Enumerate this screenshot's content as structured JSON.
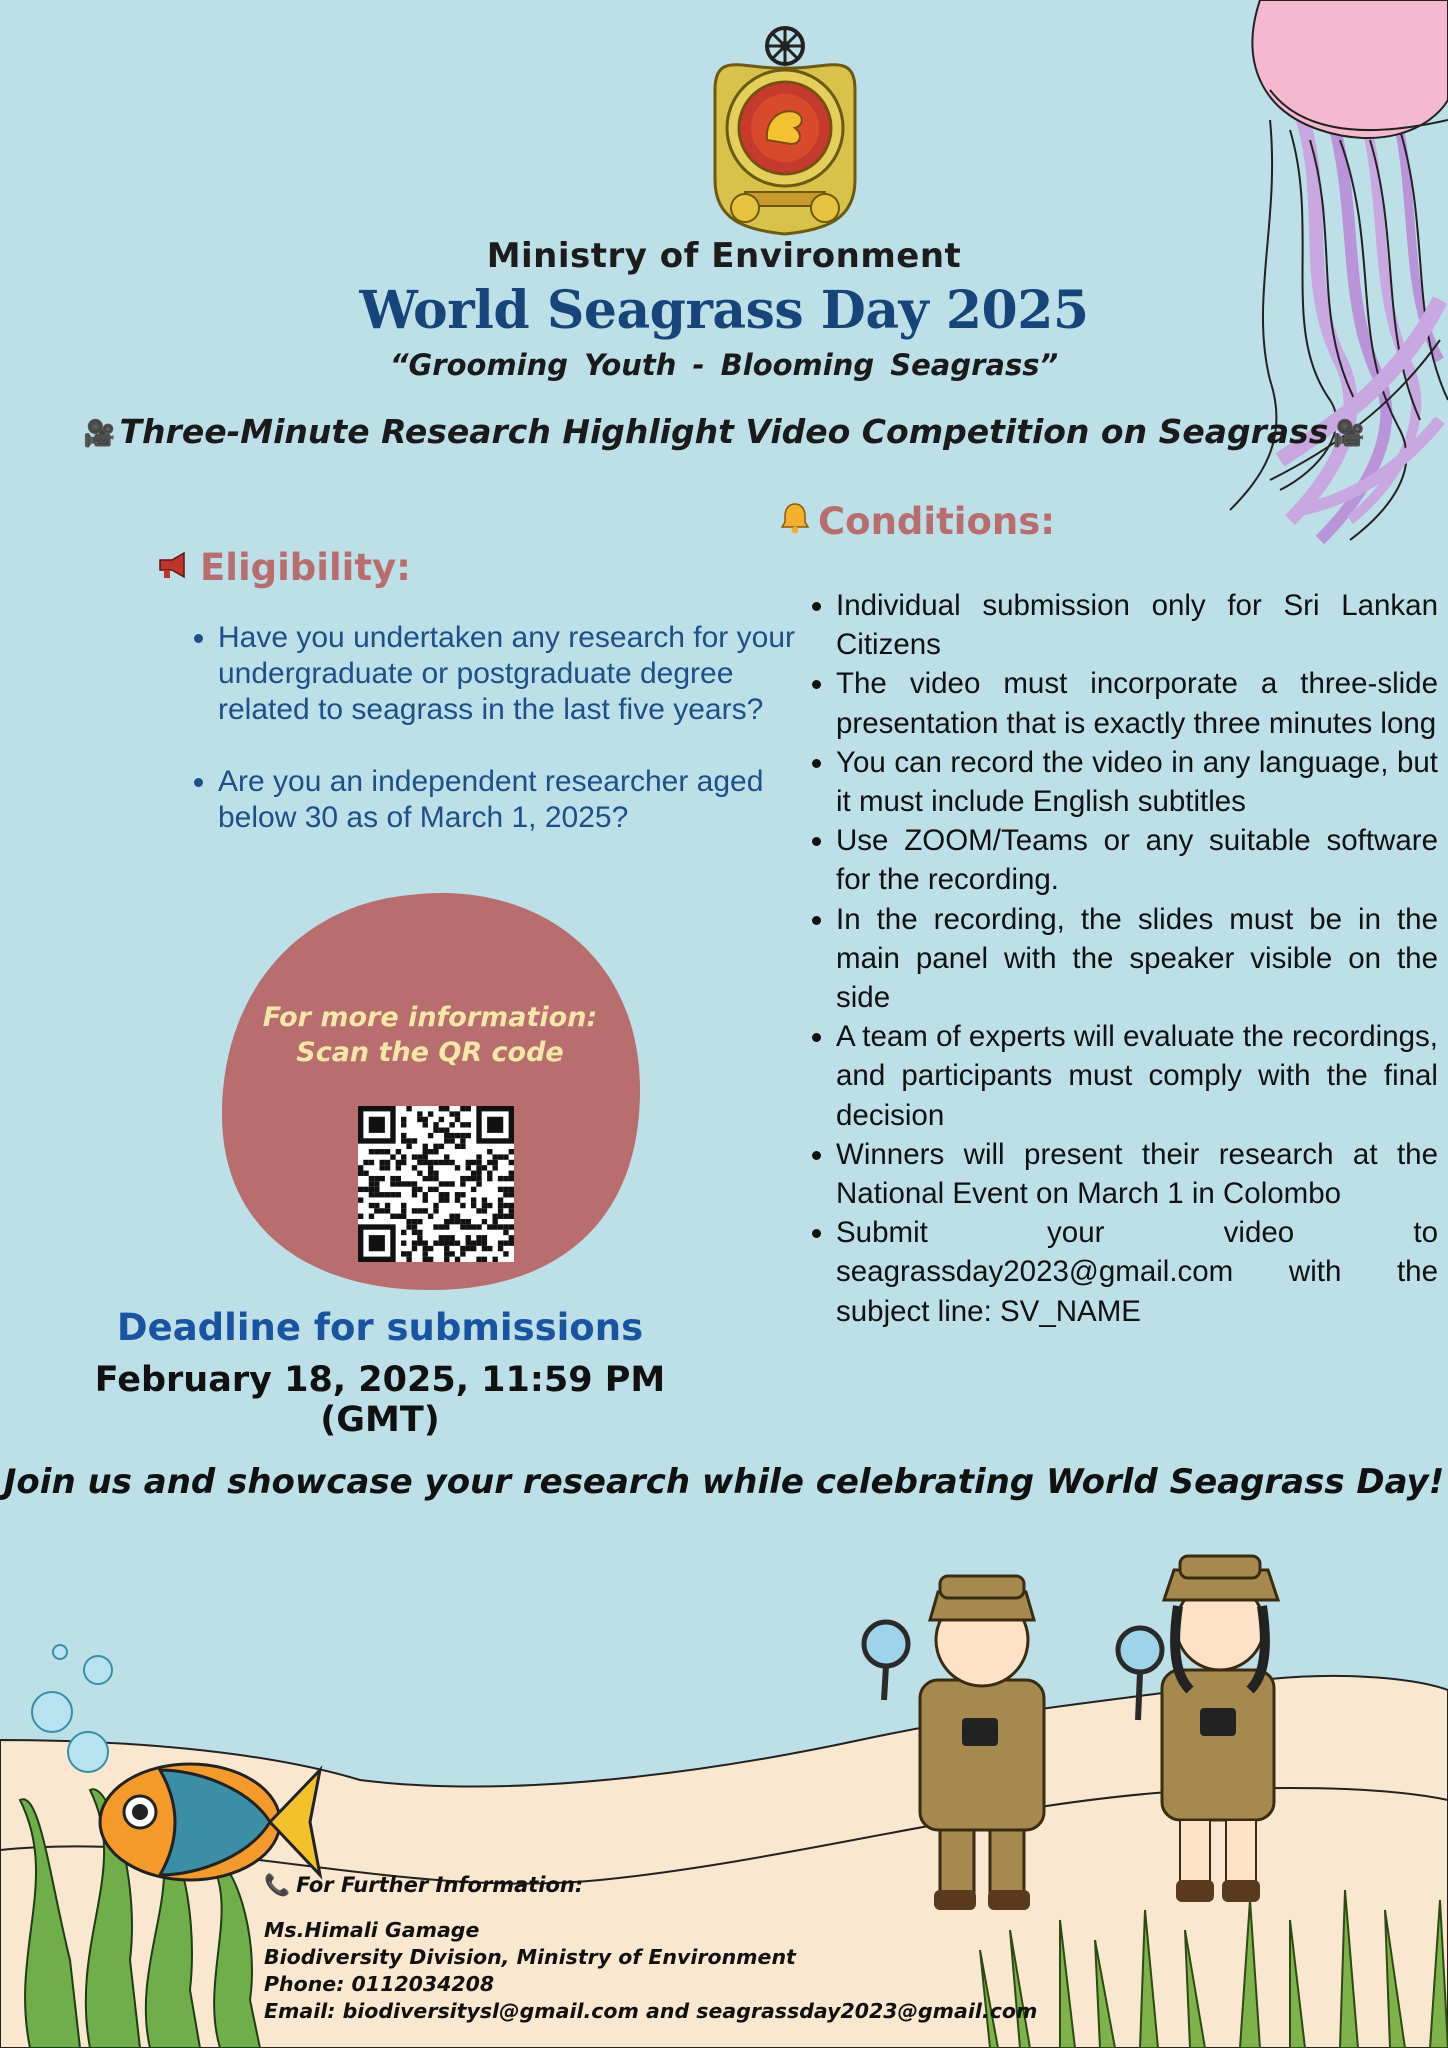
{
  "header": {
    "ministry": "Ministry of Environment",
    "event_title": "World Seagrass Day  2025",
    "theme": "“Grooming  Youth - Blooming  Seagrass”",
    "competition": "Three-Minute Research Highlight Video Competition on Seagrass"
  },
  "icons": {
    "emblem": "sri-lanka-emblem",
    "camera": "movie-camera-icon",
    "megaphone": "megaphone-icon",
    "bell": "bell-icon",
    "phone": "phone-icon"
  },
  "colors": {
    "background": "#bcdfe8",
    "title_blue": "#17457a",
    "heading_rose": "#b86e6e",
    "blob": "#b86e6e",
    "qr_text": "#f4e7a8",
    "sand": "#fae7cf"
  },
  "eligibility": {
    "heading": "Eligibility:",
    "items": [
      "Have you undertaken any research for your undergraduate or postgraduate degree related to seagrass in the last five years?",
      "Are you an independent researcher aged below 30 as of March 1, 2025?"
    ]
  },
  "qr": {
    "line1": "For more  information:",
    "line2": "Scan the QR code"
  },
  "deadline": {
    "label": "Deadline for submissions",
    "date": "February 18, 2025, 11:59 PM (GMT)"
  },
  "conditions": {
    "heading": "Conditions:",
    "items": [
      "Individual  submission only for Sri Lankan Citizens",
      "The video must incorporate a three-slide presentation that is exactly three minutes long",
      "You can record the video in any language, but it must include English subtitles",
      "Use ZOOM/Teams or any suitable software for the recording.",
      "In the recording, the slides must be in the main panel with the speaker visible on the side",
      "A team of experts will evaluate the recordings, and participants must comply with the final decision",
      "Winners will present their research at the National Event on March 1 in Colombo",
      "Submit your video to seagrassday2023@gmail.com with the subject line: SV_NAME"
    ]
  },
  "join": "Join us and showcase your research while celebrating World Seagrass Day!",
  "contact": {
    "heading": "For Further Information:",
    "name": "Ms.Himali Gamage",
    "division": "Biodiversity Division, Ministry of Environment",
    "phone": "Phone: 0112034208",
    "email": "Email: biodiversitysl@gmail.com and seagrassday2023@gmail.com"
  }
}
